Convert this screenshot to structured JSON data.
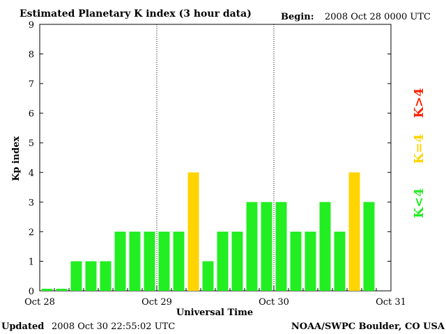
{
  "chart_data": {
    "type": "bar",
    "title": "Estimated Planetary K index (3 hour data)",
    "begin": {
      "label": "Begin:",
      "value": "2008 Oct 28 0000 UTC"
    },
    "xlabel": "Universal Time",
    "ylabel": "Kp index",
    "ylim": [
      0,
      9
    ],
    "yticks": [
      "0",
      "1",
      "2",
      "3",
      "4",
      "5",
      "6",
      "7",
      "8",
      "9"
    ],
    "xticks": [
      "Oct 28",
      "Oct 29",
      "Oct 30",
      "Oct 31"
    ],
    "xlim_hours": [
      0,
      72
    ],
    "day_dividers_hours": [
      24,
      48
    ],
    "bar_interval_hours": 3,
    "values": [
      0.07,
      0.07,
      1,
      1,
      1,
      2,
      2,
      2,
      2,
      2,
      4,
      1,
      2,
      2,
      3,
      3,
      3,
      2,
      2,
      3,
      2,
      4,
      3
    ],
    "colors": {
      "low": "#22ee22",
      "mid": "#ffd400",
      "high": "#ff2200"
    },
    "legend": [
      {
        "label": "K<4",
        "color": "#22ee22"
      },
      {
        "label": "K=4",
        "color": "#ffd400"
      },
      {
        "label": "K>4",
        "color": "#ff2200"
      }
    ]
  },
  "footer": {
    "updated_label": "Updated",
    "updated_value": "2008 Oct 30 22:55:02 UTC",
    "source": "NOAA/SWPC Boulder, CO USA"
  }
}
